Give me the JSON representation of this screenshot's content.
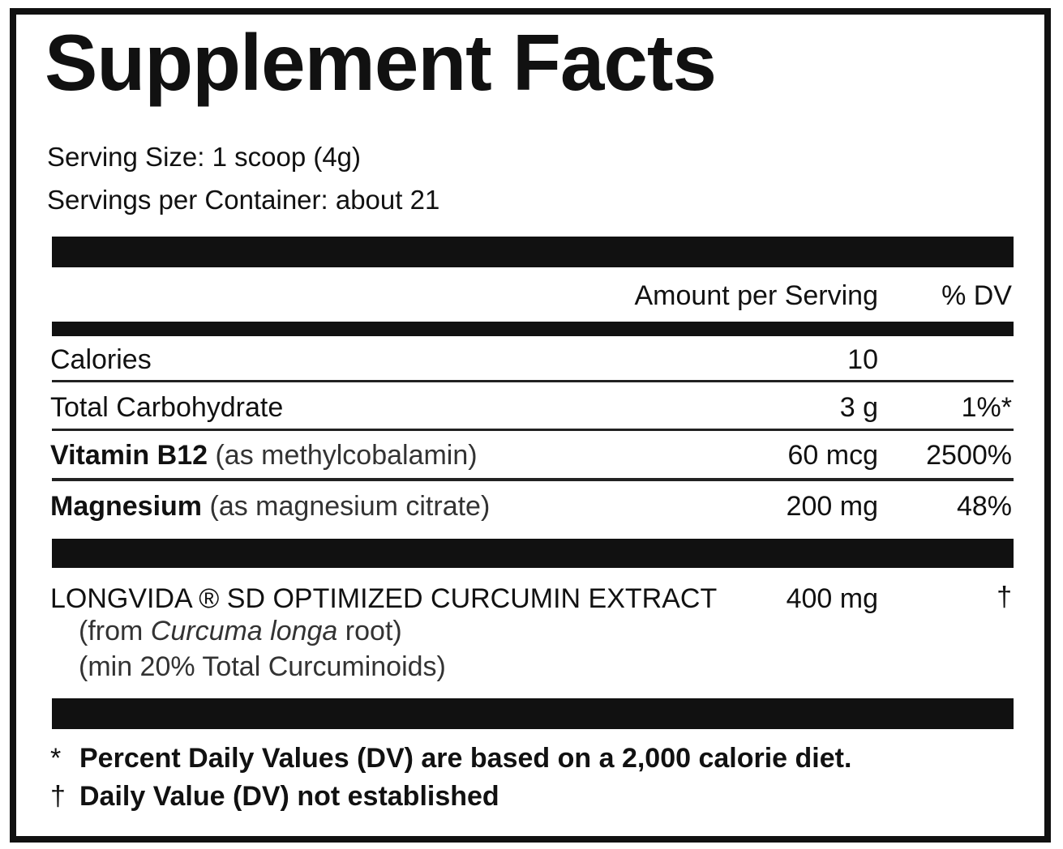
{
  "title": "Supplement Facts",
  "serving": [
    "Serving Size: 1 scoop (4g)",
    "Servings per Container: about 21"
  ],
  "header": {
    "amount": "Amount per Serving",
    "dv": "% DV"
  },
  "rows": [
    {
      "name": "Calories",
      "amount": "10"
    },
    {
      "name": "Total Carbohydrate",
      "amount": "3 g",
      "dv": "1%*"
    },
    {
      "name": "Vitamin B12",
      "source": "(as methylcobalamin)",
      "amount": "60 mcg",
      "dv": "2500%"
    },
    {
      "name": "Magnesium",
      "source": "(as magnesium citrate)",
      "amount": "200 mg",
      "dv": "48%"
    }
  ],
  "blend": {
    "name": "LONGVIDA ® SD OPTIMIZED CURCUMIN EXTRACT",
    "amount": "400 mg",
    "dv": "†",
    "from_prefix": "(from",
    "from_italic": "Curcuma longa",
    "from_suffix": "root)",
    "min": "(min 20% Total Curcuminoids)"
  },
  "footnotes": [
    {
      "symbol": "*",
      "text": "Percent Daily Values (DV) are based on a 2,000 calorie diet."
    },
    {
      "symbol": "†",
      "text": "Daily Value (DV) not established"
    }
  ]
}
